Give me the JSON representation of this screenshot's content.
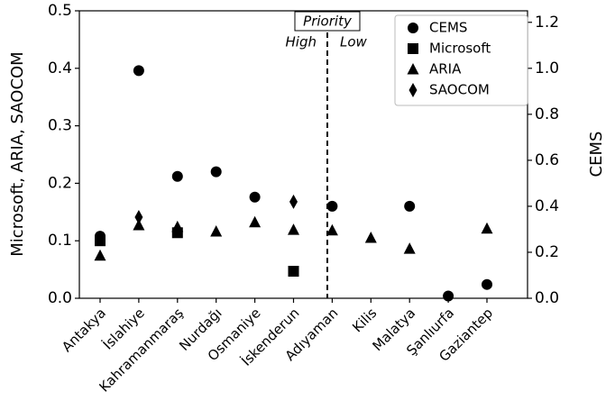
{
  "chart_data": {
    "type": "scatter",
    "categories": [
      "Antakya",
      "İslahiye",
      "Kahramanmaraş",
      "Nurdağı",
      "Osmaniye",
      "İskenderun",
      "Adıyaman",
      "Kilis",
      "Malatya",
      "Şanlıurfa",
      "Gaziantep"
    ],
    "y_label": "Microsoft, ARIA, SAOCOM",
    "y2_label": "CEMS",
    "ylim": [
      0,
      0.5
    ],
    "yticks": [
      {
        "value": 0,
        "label": "0.0"
      },
      0.1,
      0.2,
      0.3,
      0.4,
      0.5
    ],
    "y2lim": [
      0,
      1.25
    ],
    "y2ticks": [
      {
        "value": 0,
        "label": "0.0"
      },
      0.2,
      0.4,
      0.6,
      0.8,
      {
        "value": 1,
        "label": "1.0"
      },
      1.2
    ],
    "legend": "upper right",
    "series": [
      {
        "name": "CEMS",
        "color": "#000000",
        "marker": "circle",
        "axis": "y2",
        "values": [
          0.27,
          0.99,
          0.53,
          0.55,
          0.44,
          null,
          0.4,
          null,
          0.4,
          0.01,
          0.06
        ]
      },
      {
        "name": "Microsoft",
        "color": "#000000",
        "marker": "square",
        "values": [
          0.1,
          null,
          0.114,
          null,
          null,
          0.047,
          null,
          null,
          null,
          null,
          null
        ]
      },
      {
        "name": "ARIA",
        "color": "#000000",
        "marker": "triangle",
        "values": [
          0.074,
          0.127,
          0.124,
          0.116,
          0.132,
          0.119,
          0.118,
          0.105,
          0.086,
          null,
          0.121
        ]
      },
      {
        "name": "SAOCOM",
        "color": "#000000",
        "marker": "diamond",
        "values": [
          null,
          0.141,
          null,
          null,
          null,
          0.168,
          null,
          null,
          null,
          null,
          null
        ]
      }
    ],
    "annotation": {
      "title": "Priority",
      "left": "High",
      "right": "Low"
    }
  }
}
